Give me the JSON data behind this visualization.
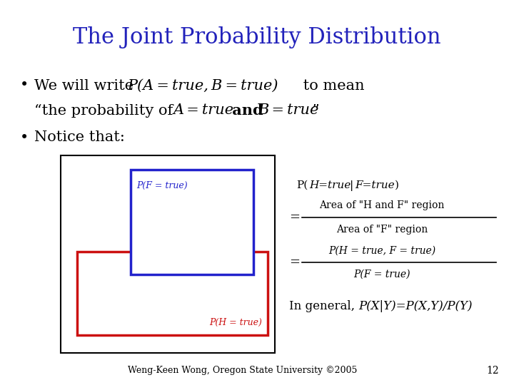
{
  "title": "The Joint Probability Distribution",
  "title_color": "#2222BB",
  "title_fontsize": 22,
  "background_color": "#FFFFFF",
  "footer": "Weng-Keen Wong, Oregon State University ©2005",
  "page_num": "12",
  "blue_color": "#2222CC",
  "red_color": "#CC1111"
}
